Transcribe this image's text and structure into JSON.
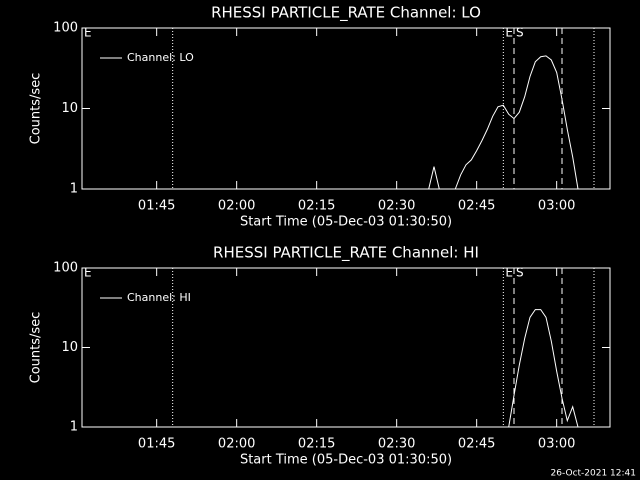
{
  "chart_data": [
    {
      "type": "line",
      "title": "RHESSI PARTICLE_RATE Channel: LO",
      "xlabel": "Start Time (05-Dec-03 01:30:50)",
      "ylabel": "Counts/sec",
      "log_y": true,
      "ylim": [
        1,
        100
      ],
      "yticks": [
        1,
        10,
        100
      ],
      "xlim": [
        "01:31",
        "03:10"
      ],
      "xticks": [
        "01:45",
        "02:00",
        "02:15",
        "02:30",
        "02:45",
        "03:00"
      ],
      "legend": "upper left",
      "x": [
        "02:36",
        "02:37",
        "02:38",
        "02:39",
        "02:41",
        "02:42",
        "02:43",
        "02:44",
        "02:45",
        "02:46",
        "02:47",
        "02:48",
        "02:49",
        "02:50",
        "02:51",
        "02:52",
        "02:53",
        "02:54",
        "02:55",
        "02:56",
        "02:57",
        "02:58",
        "02:59",
        "03:00",
        "03:01",
        "03:02",
        "03:03",
        "03:04"
      ],
      "series": [
        {
          "name": "Channel: LO",
          "color": "#ffffff",
          "values": [
            1,
            1.9,
            1,
            null,
            1,
            1.5,
            2,
            2.3,
            3,
            4,
            5.5,
            8,
            10.5,
            11,
            8.5,
            7.5,
            9,
            14,
            25,
            38,
            44,
            45,
            40,
            28,
            13,
            5.5,
            2.5,
            1
          ]
        }
      ],
      "markers": [
        {
          "x": "01:31",
          "label": "E"
        },
        {
          "x": "01:48",
          "style": "dotted"
        },
        {
          "x": "02:50",
          "style": "dotted",
          "label": "E"
        },
        {
          "x": "02:52",
          "style": "dashed",
          "label": "S"
        },
        {
          "x": "03:01",
          "style": "dashed"
        },
        {
          "x": "03:07",
          "style": "dotted"
        }
      ]
    },
    {
      "type": "line",
      "title": "RHESSI PARTICLE_RATE Channel: HI",
      "xlabel": "Start Time (05-Dec-03 01:30:50)",
      "ylabel": "Counts/sec",
      "log_y": true,
      "ylim": [
        1,
        100
      ],
      "yticks": [
        1,
        10,
        100
      ],
      "xlim": [
        "01:31",
        "03:10"
      ],
      "xticks": [
        "01:45",
        "02:00",
        "02:15",
        "02:30",
        "02:45",
        "03:00"
      ],
      "legend": "upper left",
      "x": [
        "02:51",
        "02:52",
        "02:53",
        "02:54",
        "02:55",
        "02:56",
        "02:57",
        "02:58",
        "02:59",
        "03:00",
        "03:01",
        "03:02",
        "03:03",
        "03:04"
      ],
      "series": [
        {
          "name": "Channel: HI",
          "color": "#ffffff",
          "values": [
            1,
            2.5,
            6,
            13,
            24,
            30,
            30,
            24,
            12,
            5,
            2.3,
            1.2,
            1.8,
            1
          ]
        }
      ],
      "markers": [
        {
          "x": "01:31",
          "label": "E"
        },
        {
          "x": "01:48",
          "style": "dotted"
        },
        {
          "x": "02:50",
          "style": "dotted",
          "label": "E"
        },
        {
          "x": "02:52",
          "style": "dashed",
          "label": "S"
        },
        {
          "x": "03:01",
          "style": "dashed"
        },
        {
          "x": "03:07",
          "style": "dotted"
        }
      ]
    }
  ],
  "timestamp": "26-Oct-2021 12:41"
}
